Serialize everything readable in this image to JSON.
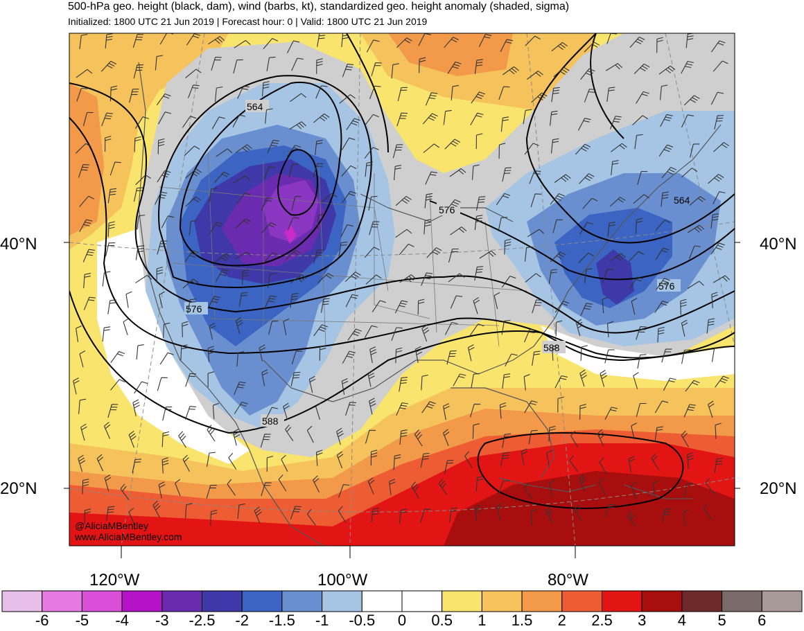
{
  "header": {
    "title": "500-hPa geo. height (black, dam), wind (barbs, kt), standardized geo. height anomaly (shaded, sigma)",
    "subtitle": "Initialized: 1800 UTC 21 Jun 2019 | Forecast hour: 0 | Valid: 1800 UTC 21 Jun 2019"
  },
  "map": {
    "lat_labels": [
      "40°N",
      "20°N"
    ],
    "lon_labels": [
      "120°W",
      "100°W",
      "80°W"
    ],
    "contour_labels": [
      "564",
      "576",
      "576",
      "588",
      "588",
      "564",
      "576"
    ],
    "credits": [
      "@AliciaMBentley",
      "www.AliciaMBentley.com"
    ]
  },
  "colorbar": {
    "labels": [
      "-6",
      "-5",
      "-4",
      "-3",
      "-2.5",
      "-2",
      "-1.5",
      "-1",
      "-0.5",
      "0",
      "0.5",
      "1",
      "1.5",
      "2",
      "2.5",
      "3",
      "4",
      "5",
      "6"
    ],
    "colors": [
      "#e8bfe8",
      "#e57ae3",
      "#d94fd7",
      "#b312c6",
      "#6a2bb0",
      "#3f38a9",
      "#3b64c3",
      "#6a8fd0",
      "#a6c5e5",
      "#ffffff",
      "#ffffff",
      "#f9e56d",
      "#f5c25c",
      "#f2994a",
      "#ee5c33",
      "#e31414",
      "#a80e0e",
      "#6e2a2a",
      "#7a6a69",
      "#a89a99"
    ]
  }
}
